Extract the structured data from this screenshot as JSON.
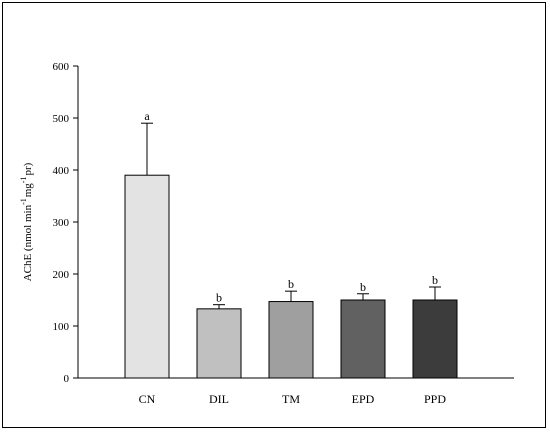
{
  "chart_data": {
    "type": "bar",
    "ylabel": "AChE (nmol min",
    "ylabel_sup1": "-1",
    "ylabel_mid": "mg",
    "ylabel_sup2": "-1",
    "ylabel_end": "pr)",
    "ylim": [
      0,
      600
    ],
    "yticks": [
      0,
      100,
      200,
      300,
      400,
      500,
      600
    ],
    "yticks_text": [
      "0",
      "100",
      "200",
      "300",
      "400",
      "500",
      "600"
    ],
    "categories": [
      "CN",
      "DIL",
      "TM",
      "EPD",
      "PPD"
    ],
    "values": [
      390,
      133,
      147,
      150,
      150
    ],
    "errors": [
      100,
      8,
      20,
      12,
      25
    ],
    "significance": [
      "a",
      "b",
      "b",
      "b",
      "b"
    ],
    "bar_colors": [
      "#e3e3e3",
      "#c0c0c0",
      "#9f9f9f",
      "#616161",
      "#3c3c3c"
    ],
    "grid": false
  }
}
